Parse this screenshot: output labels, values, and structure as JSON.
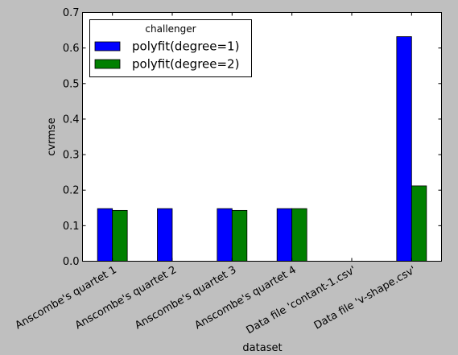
{
  "chart_data": {
    "type": "bar",
    "xlabel": "dataset",
    "ylabel": "cvrmse",
    "ylim": [
      0,
      0.7
    ],
    "yticks": [
      "0.0",
      "0.1",
      "0.2",
      "0.3",
      "0.4",
      "0.5",
      "0.6",
      "0.7"
    ],
    "categories": [
      "Anscombe's quartet 1",
      "Anscombe's quartet 2",
      "Anscombe's quartet 3",
      "Anscombe's quartet 4",
      "Data file 'contant-1.csv'",
      "Data file 'v-shape.csv'"
    ],
    "legend": {
      "title": "challenger",
      "placement": "top-left"
    },
    "grid": false,
    "series": [
      {
        "name": "polyfit(degree=1)",
        "color": "#0000ff",
        "values": [
          0.148,
          0.148,
          0.148,
          0.148,
          0.0,
          0.632
        ]
      },
      {
        "name": "polyfit(degree=2)",
        "color": "#008000",
        "values": [
          0.143,
          0.0,
          0.143,
          0.148,
          0.0,
          0.212
        ]
      }
    ]
  }
}
